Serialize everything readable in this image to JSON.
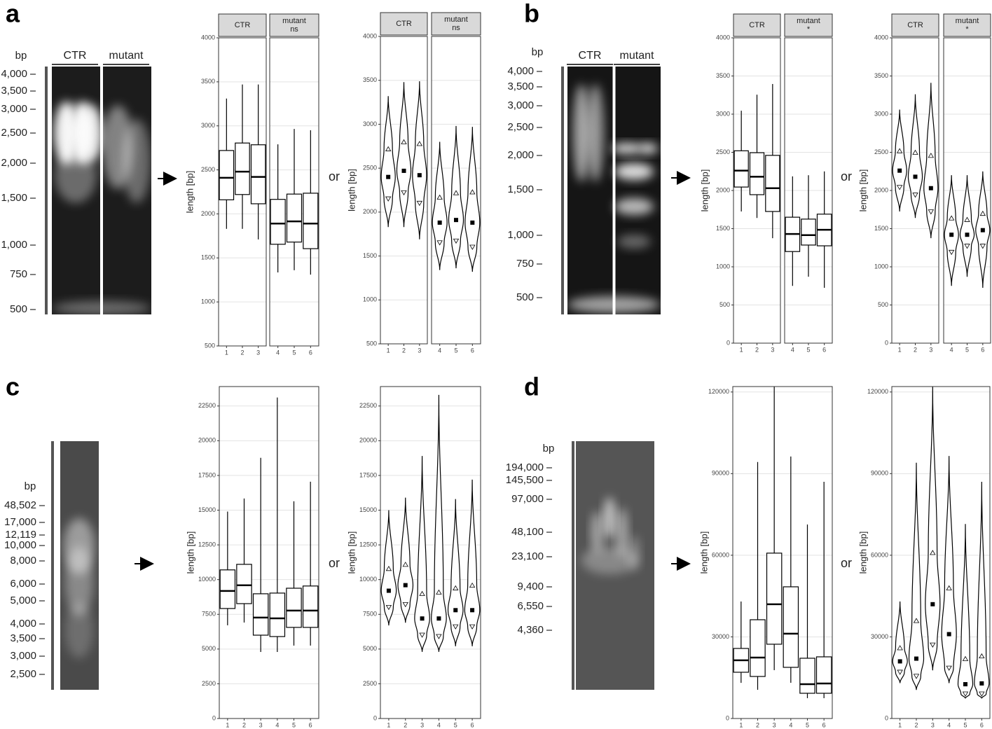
{
  "panels": [
    {
      "letter": "a",
      "bp": "bp",
      "lanes": [
        "CTR",
        "mutant"
      ],
      "ladder": [
        "4,000",
        "3,500",
        "3,000",
        "2,500",
        "2,000",
        "1,500",
        "1,000",
        "750",
        "500"
      ],
      "or": "or"
    },
    {
      "letter": "b",
      "bp": "bp",
      "lanes": [
        "CTR",
        "mutant"
      ],
      "ladder": [
        "4,000",
        "3,500",
        "3,000",
        "2,500",
        "2,000",
        "1,500",
        "1,000",
        "750",
        "500"
      ],
      "or": "or"
    },
    {
      "letter": "c",
      "bp": "bp",
      "ladder": [
        "48,502",
        "17,000",
        "12,119",
        "10,000",
        "8,000",
        "6,000",
        "5,000",
        "4,000",
        "3,500",
        "3,000",
        "2,500"
      ],
      "or": "or"
    },
    {
      "letter": "d",
      "bp": "bp",
      "ladder": [
        "194,000",
        "145,500",
        "97,000",
        "48,100",
        "23,100",
        "9,400",
        "6,550",
        "4,360"
      ],
      "or": "or"
    }
  ],
  "chart_data": [
    {
      "type": "box",
      "y_label": "length [bp]",
      "ylim": [
        500,
        4000
      ],
      "yticks": [
        500,
        1000,
        1500,
        2000,
        2500,
        3000,
        3500,
        4000
      ],
      "grid": true,
      "facets": [
        {
          "strip": [
            "CTR"
          ],
          "categories": [
            "1",
            "2",
            "3"
          ]
        },
        {
          "strip": [
            "mutant",
            "ns"
          ],
          "categories": [
            "4",
            "5",
            "6"
          ]
        }
      ],
      "whisker_low": [
        1830,
        1830,
        1710,
        1335,
        1360,
        1310
      ],
      "q1": [
        2160,
        2220,
        2115,
        1655,
        1680,
        1605
      ],
      "median": [
        2410,
        2480,
        2420,
        1890,
        1915,
        1890
      ],
      "q3": [
        2720,
        2805,
        2785,
        2165,
        2225,
        2235
      ],
      "whisker_high": [
        3310,
        3470,
        3470,
        2790,
        2965,
        2950
      ]
    },
    {
      "type": "violin",
      "y_label": "length [bp]",
      "ylim": [
        500,
        4000
      ],
      "yticks": [
        500,
        1000,
        1500,
        2000,
        2500,
        3000,
        3500,
        4000
      ],
      "grid": true,
      "facets": [
        {
          "strip": [
            "CTR"
          ],
          "categories": [
            "1",
            "2",
            "3"
          ]
        },
        {
          "strip": [
            "mutant",
            "ns"
          ],
          "categories": [
            "4",
            "5",
            "6"
          ]
        }
      ],
      "min": [
        1830,
        1830,
        1690,
        1340,
        1360,
        1320
      ],
      "lower": [
        2150,
        2220,
        2100,
        1650,
        1670,
        1600
      ],
      "mean": [
        2400,
        2470,
        2420,
        1880,
        1910,
        1880
      ],
      "upper": [
        2720,
        2800,
        2780,
        2170,
        2220,
        2230
      ],
      "max": [
        3320,
        3480,
        3490,
        2800,
        2980,
        2970
      ]
    },
    {
      "type": "box",
      "y_label": "length [bp]",
      "ylim": [
        0,
        4000
      ],
      "yticks": [
        0,
        500,
        1000,
        1500,
        2000,
        2500,
        3000,
        3500,
        4000
      ],
      "grid": true,
      "facets": [
        {
          "strip": [
            "CTR"
          ],
          "categories": [
            "1",
            "2",
            "3"
          ]
        },
        {
          "strip": [
            "mutant",
            "*"
          ],
          "categories": [
            "4",
            "5",
            "6"
          ]
        }
      ],
      "whisker_low": [
        1725,
        1640,
        1375,
        750,
        870,
        725
      ],
      "q1": [
        2045,
        1945,
        1725,
        1200,
        1285,
        1275
      ],
      "median": [
        2260,
        2180,
        2030,
        1430,
        1415,
        1485
      ],
      "q3": [
        2520,
        2495,
        2460,
        1650,
        1625,
        1690
      ],
      "whisker_high": [
        3045,
        3255,
        3395,
        2185,
        2200,
        2250
      ]
    },
    {
      "type": "violin",
      "y_label": "length [bp]",
      "ylim": [
        0,
        4000
      ],
      "yticks": [
        0,
        500,
        1000,
        1500,
        2000,
        2500,
        3000,
        3500,
        4000
      ],
      "grid": true,
      "facets": [
        {
          "strip": [
            "CTR"
          ],
          "categories": [
            "1",
            "2",
            "3"
          ]
        },
        {
          "strip": [
            "mutant",
            "*"
          ],
          "categories": [
            "4",
            "5",
            "6"
          ]
        }
      ],
      "min": [
        1725,
        1640,
        1375,
        750,
        870,
        725
      ],
      "lower": [
        2040,
        1940,
        1720,
        1190,
        1270,
        1270
      ],
      "mean": [
        2260,
        2180,
        2030,
        1420,
        1420,
        1480
      ],
      "upper": [
        2520,
        2500,
        2460,
        1640,
        1620,
        1700
      ],
      "max": [
        3060,
        3260,
        3410,
        2200,
        2200,
        2250
      ]
    },
    {
      "type": "box",
      "y_label": "length [bp]",
      "ylim": [
        0,
        23900
      ],
      "yticks": [
        0,
        2500,
        5000,
        7500,
        10000,
        12500,
        15000,
        17500,
        20000,
        22500
      ],
      "grid": true,
      "categories": [
        "1",
        "2",
        "3",
        "4",
        "5",
        "6"
      ],
      "whisker_low": [
        6710,
        6910,
        4790,
        4790,
        5250,
        5250
      ],
      "q1": [
        7920,
        8270,
        6000,
        5900,
        6560,
        6560
      ],
      "median": [
        9180,
        9590,
        7270,
        7210,
        7770,
        7770
      ],
      "q3": [
        10700,
        11100,
        8980,
        9030,
        9380,
        9540
      ],
      "whisker_high": [
        14900,
        15840,
        18770,
        23110,
        15640,
        17050
      ]
    },
    {
      "type": "violin",
      "y_label": "length [bp]",
      "ylim": [
        0,
        23900
      ],
      "yticks": [
        0,
        2500,
        5000,
        7500,
        10000,
        12500,
        15000,
        17500,
        20000,
        22500
      ],
      "grid": true,
      "categories": [
        "1",
        "2",
        "3",
        "4",
        "5",
        "6"
      ],
      "min": [
        6700,
        6900,
        4800,
        4800,
        5200,
        5200
      ],
      "lower": [
        8000,
        8200,
        6000,
        5900,
        6600,
        6600
      ],
      "mean": [
        9200,
        9600,
        7200,
        7200,
        7800,
        7800
      ],
      "upper": [
        10800,
        11100,
        9000,
        9100,
        9400,
        9600
      ],
      "max": [
        15000,
        15900,
        18900,
        23300,
        15800,
        17200
      ]
    },
    {
      "type": "box",
      "y_label": "length [bp]",
      "ylim": [
        0,
        122000
      ],
      "yticks": [
        0,
        30000,
        60000,
        90000,
        120000
      ],
      "grid": true,
      "categories": [
        "1",
        "2",
        "3",
        "4",
        "5",
        "6"
      ],
      "whisker_low": [
        13100,
        10560,
        17770,
        13130,
        7470,
        7470
      ],
      "q1": [
        17000,
        15450,
        27300,
        18800,
        9270,
        9270
      ],
      "median": [
        21400,
        22400,
        41980,
        31160,
        12600,
        12880
      ],
      "q3": [
        25750,
        36300,
        60780,
        48400,
        22150,
        22660
      ],
      "whisker_high": [
        43000,
        94260,
        122000,
        96300,
        71300,
        87000
      ]
    },
    {
      "type": "violin",
      "y_label": "length [bp]",
      "ylim": [
        0,
        122000
      ],
      "yticks": [
        0,
        30000,
        60000,
        90000,
        120000
      ],
      "grid": true,
      "categories": [
        "1",
        "2",
        "3",
        "4",
        "5",
        "6"
      ],
      "min": [
        13000,
        10500,
        17700,
        13000,
        7400,
        7400
      ],
      "lower": [
        17000,
        15500,
        27000,
        18500,
        9000,
        9000
      ],
      "mean": [
        21000,
        22000,
        42000,
        31000,
        12600,
        12900
      ],
      "upper": [
        26000,
        36000,
        61000,
        48000,
        22000,
        23000
      ],
      "max": [
        43000,
        94000,
        122000,
        96500,
        71500,
        87000
      ]
    }
  ]
}
